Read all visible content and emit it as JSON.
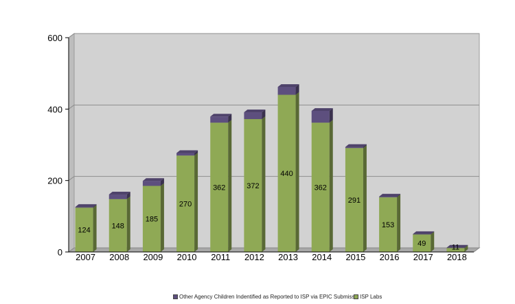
{
  "chart_data": {
    "type": "bar",
    "stacked": true,
    "three_d": true,
    "categories": [
      "2007",
      "2008",
      "2009",
      "2010",
      "2011",
      "2012",
      "2013",
      "2014",
      "2015",
      "2016",
      "2017",
      "2018"
    ],
    "series": [
      {
        "name": "ISP Labs",
        "color": "#8fa955",
        "values": [
          124,
          148,
          185,
          270,
          362,
          372,
          440,
          362,
          291,
          153,
          49,
          11
        ],
        "labels": [
          "124",
          "148",
          "185",
          "270",
          "362",
          "372",
          "440",
          "362",
          "291",
          "153",
          "49",
          "11"
        ]
      },
      {
        "name": "Other Agency Children Indentified as Reported to ISP via EPIC Submission",
        "color": "#5d4f7e",
        "values": [
          2,
          13,
          14,
          7,
          17,
          19,
          22,
          33,
          3,
          2,
          1,
          1
        ]
      }
    ],
    "yticks": [
      "0",
      "200",
      "400",
      "600"
    ],
    "ylim": [
      0,
      600
    ],
    "grid": true,
    "legend_position": "bottom",
    "legend_entries": [
      {
        "text": "Other Agency Children Indentified as Reported to ISP via EPIC Submission",
        "color": "#5d4f7e"
      },
      {
        "text": "ISP Labs",
        "color": "#8fa955"
      }
    ]
  }
}
